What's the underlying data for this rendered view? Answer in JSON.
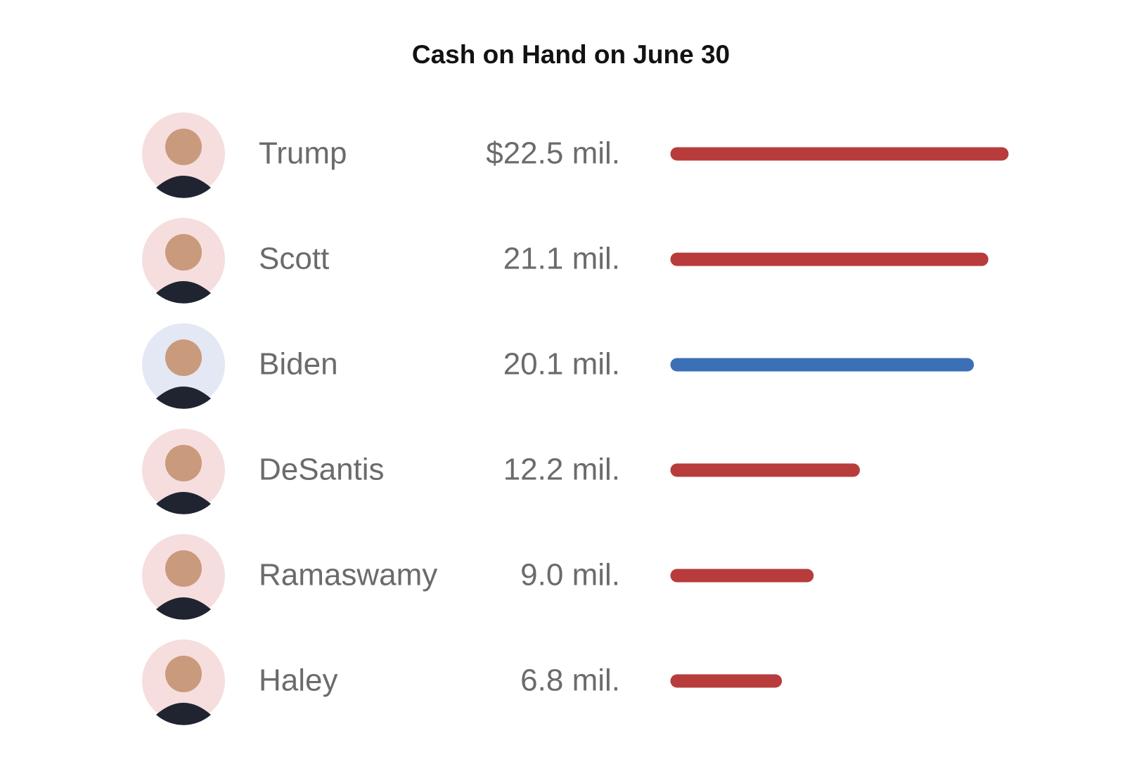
{
  "chart_data": {
    "type": "bar",
    "orientation": "horizontal",
    "title": "Cash on Hand on June 30",
    "categories": [
      "Trump",
      "Scott",
      "Biden",
      "DeSantis",
      "Ramaswamy",
      "Haley"
    ],
    "values": [
      22.5,
      21.1,
      20.1,
      12.2,
      9.0,
      6.8
    ],
    "value_labels": [
      "$22.5 mil.",
      "21.1 mil.",
      "20.1 mil.",
      "12.2 mil.",
      "9.0 mil.",
      "6.8 mil."
    ],
    "colors": [
      "#b83c3b",
      "#b83c3b",
      "#3b70b6",
      "#b83c3b",
      "#b83c3b",
      "#b83c3b"
    ]
  }
}
